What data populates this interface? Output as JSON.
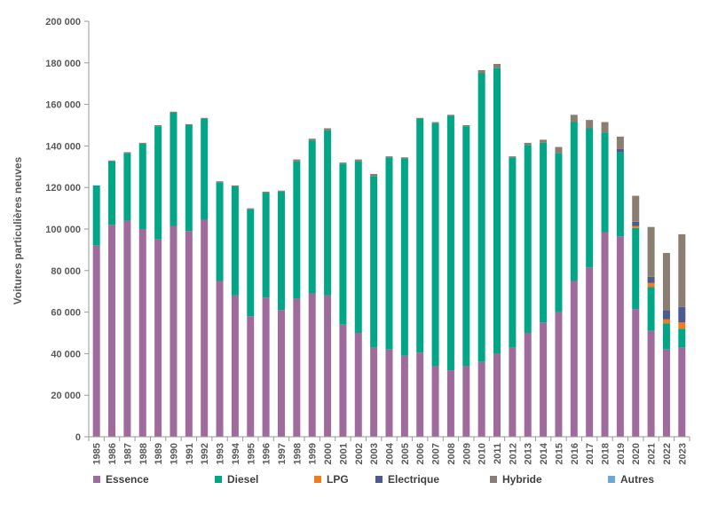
{
  "chart_data": {
    "type": "bar",
    "stacked": true,
    "title": "",
    "xlabel": "",
    "ylabel": "Voitures particulières neuves",
    "ylim": [
      0,
      200000
    ],
    "yticks": [
      "0",
      "20 000",
      "40 000",
      "60 000",
      "80 000",
      "100 000",
      "120 000",
      "140 000",
      "160 000",
      "180 000",
      "200 000"
    ],
    "categories": [
      "1985",
      "1986",
      "1987",
      "1988",
      "1989",
      "1990",
      "1991",
      "1992",
      "1993",
      "1994",
      "1995",
      "1996",
      "1997",
      "1998",
      "1999",
      "2000",
      "2001",
      "2002",
      "2003",
      "2004",
      "2005",
      "2006",
      "2007",
      "2008",
      "2009",
      "2010",
      "2011",
      "2012",
      "2013",
      "2014",
      "2015",
      "2016",
      "2017",
      "2018",
      "2019",
      "2020",
      "2021",
      "2022",
      "2023"
    ],
    "grid": false,
    "legend_position": "bottom",
    "series": [
      {
        "name": "Essence",
        "color": "#9e6b9c",
        "values": [
          92000,
          102000,
          104000,
          100000,
          95000,
          101500,
          99000,
          104500,
          75000,
          68000,
          58000,
          67000,
          61000,
          66500,
          69000,
          68000,
          54000,
          50000,
          43000,
          42000,
          39000,
          40500,
          34000,
          32000,
          34000,
          36000,
          40000,
          43000,
          50000,
          55000,
          60000,
          75000,
          81500,
          98500,
          96500,
          61500,
          51000,
          42000,
          43000
        ]
      },
      {
        "name": "Diesel",
        "color": "#00a685",
        "values": [
          29000,
          30500,
          32500,
          41000,
          54500,
          54500,
          51000,
          48500,
          47500,
          52500,
          51500,
          50500,
          57000,
          66000,
          73500,
          79500,
          77500,
          82500,
          82500,
          92500,
          95000,
          112500,
          117000,
          122500,
          115500,
          139000,
          137500,
          91500,
          90500,
          86500,
          76500,
          76500,
          67000,
          48000,
          40500,
          39000,
          21000,
          12500,
          9000
        ]
      },
      {
        "name": "LPG",
        "color": "#ee7d1e",
        "values": [
          0,
          0,
          0,
          0,
          0,
          0,
          0,
          0,
          0,
          0,
          0,
          0,
          0,
          0,
          0,
          0,
          0,
          0,
          0,
          0,
          0,
          0,
          0,
          0,
          0,
          0,
          0,
          0,
          0,
          0,
          0,
          0,
          0,
          0,
          0,
          1000,
          2000,
          2000,
          3000
        ]
      },
      {
        "name": "Electrique",
        "color": "#4d5a92",
        "values": [
          0,
          0,
          0,
          0,
          0,
          0,
          0,
          0,
          0,
          0,
          0,
          0,
          0,
          0,
          0,
          0,
          0,
          0,
          0,
          0,
          0,
          0,
          0,
          0,
          0,
          0,
          0,
          0,
          0,
          0,
          0,
          0,
          0,
          0,
          1500,
          2000,
          3000,
          4500,
          7500
        ]
      },
      {
        "name": "Hybride",
        "color": "#8a7e70",
        "values": [
          0,
          500,
          500,
          500,
          500,
          500,
          500,
          500,
          500,
          500,
          500,
          500,
          500,
          1000,
          1000,
          1000,
          500,
          1000,
          1000,
          500,
          500,
          500,
          500,
          500,
          500,
          1500,
          2000,
          500,
          1000,
          1500,
          3000,
          3500,
          4000,
          5000,
          6000,
          12500,
          24000,
          27500,
          35000
        ]
      },
      {
        "name": "Autres",
        "color": "#6aa8d6",
        "values": [
          0,
          0,
          0,
          0,
          0,
          0,
          0,
          0,
          0,
          0,
          0,
          0,
          0,
          0,
          0,
          0,
          0,
          0,
          0,
          0,
          0,
          0,
          0,
          0,
          0,
          0,
          0,
          0,
          0,
          0,
          0,
          0,
          0,
          0,
          0,
          0,
          0,
          0,
          0
        ]
      }
    ]
  }
}
